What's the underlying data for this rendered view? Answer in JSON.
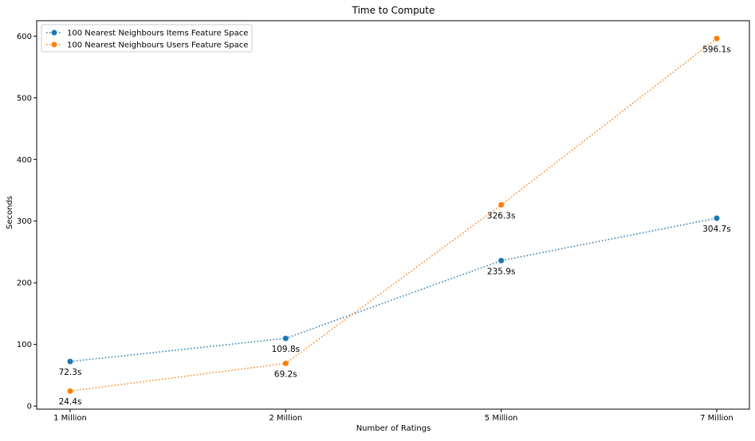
{
  "chart_data": {
    "type": "line",
    "title": "Time to Compute",
    "xlabel": "Number of Ratings",
    "ylabel": "Seconds",
    "categories": [
      "1 Million",
      "2 Million",
      "5 Million",
      "7 Million"
    ],
    "ylim": [
      -5,
      625
    ],
    "yticks": [
      0,
      100,
      200,
      300,
      400,
      500,
      600
    ],
    "grid": false,
    "legend_position": "top-left",
    "line_style": "dotted",
    "marker": "circle",
    "series": [
      {
        "name": "100 Nearest Neighbours Items Feature Space",
        "color": "#1f77b4",
        "values": [
          72.3,
          109.8,
          235.9,
          304.7
        ],
        "labels": [
          "72.3s",
          "109.8s",
          "235.9s",
          "304.7s"
        ]
      },
      {
        "name": "100 Nearest Neighbours Users Feature Space",
        "color": "#ff7f0e",
        "values": [
          24.4,
          69.2,
          326.3,
          596.1
        ],
        "labels": [
          "24.4s",
          "69.2s",
          "326.3s",
          "596.1s"
        ]
      }
    ]
  }
}
